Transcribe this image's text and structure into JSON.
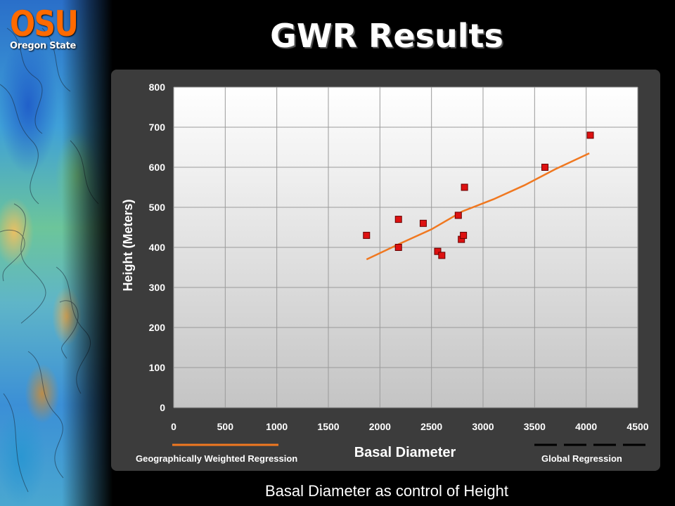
{
  "slide": {
    "title": "GWR Results",
    "caption": "Basal Diameter as control of Height"
  },
  "logo": {
    "mark": "OSU",
    "subtitle": "Oregon State",
    "color": "#ff6a00"
  },
  "colors": {
    "panel": "#3c3c3c",
    "gwr_line": "#f07820",
    "global_line": "#000000",
    "point_fill": "#dd1111"
  },
  "chart_data": {
    "type": "scatter",
    "title": "",
    "xlabel": "Basal Diameter",
    "ylabel": "Height (Meters)",
    "xlim": [
      0,
      4500
    ],
    "ylim": [
      0,
      800
    ],
    "xticks": [
      0,
      500,
      1000,
      1500,
      2000,
      2500,
      3000,
      3500,
      4000,
      4500
    ],
    "yticks": [
      0,
      100,
      200,
      300,
      400,
      500,
      600,
      700,
      800
    ],
    "grid": true,
    "series": [
      {
        "name": "points",
        "type": "scatter",
        "x": [
          1870,
          2180,
          2180,
          2420,
          2560,
          2600,
          2760,
          2790,
          2810,
          2820,
          3600,
          4040
        ],
        "y": [
          430,
          470,
          400,
          460,
          390,
          380,
          480,
          420,
          430,
          550,
          600,
          680
        ]
      },
      {
        "name": "Geographically Weighted Regression",
        "type": "line",
        "x": [
          1870,
          2200,
          2500,
          2800,
          3100,
          3400,
          3700,
          4030
        ],
        "y": [
          370,
          410,
          445,
          490,
          520,
          555,
          595,
          635
        ]
      }
    ],
    "legend": {
      "placement": "bottom",
      "items": [
        {
          "label": "Geographically Weighted Regression",
          "style": "solid",
          "color": "#f07820"
        },
        {
          "label": "Global Regression",
          "style": "dashed",
          "color": "#000000"
        }
      ]
    }
  }
}
